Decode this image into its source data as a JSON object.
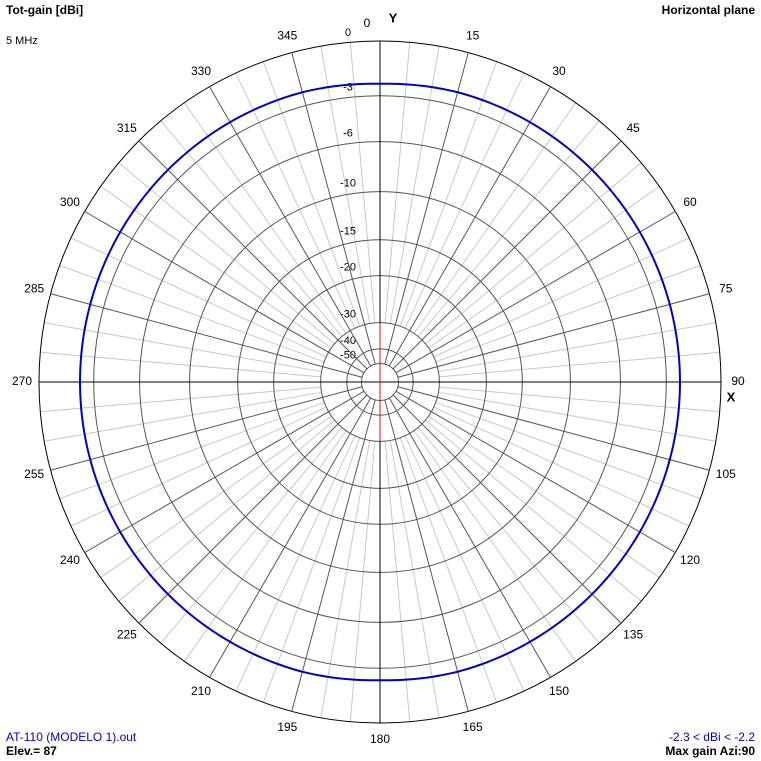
{
  "chart_data": {
    "type": "polar",
    "title": "Tot-gain [dBi]",
    "subtitle": "5 MHz",
    "plane": "Horizontal plane",
    "y_axis_label": "Y",
    "x_axis_label": "X",
    "file_name": "AT-110 (MODELO 1).out",
    "elevation": "Elev.= 87",
    "gain_range": "-2.3 < dBi < -2.2",
    "max_gain": "Max gain Azi:90",
    "rlim": [
      -50,
      0
    ],
    "rticks": [
      0,
      -3,
      -6,
      -10,
      -15,
      -20,
      -30,
      -40,
      -50
    ],
    "angle_ticks": [
      0,
      15,
      30,
      45,
      60,
      75,
      90,
      105,
      120,
      135,
      150,
      165,
      180,
      195,
      210,
      225,
      240,
      255,
      270,
      285,
      300,
      315,
      330,
      345
    ],
    "grid": true,
    "series": [
      {
        "name": "Tot-gain",
        "color": "#0000c0",
        "x": [
          0,
          15,
          30,
          45,
          60,
          75,
          90,
          105,
          120,
          135,
          150,
          165,
          180,
          195,
          210,
          225,
          240,
          255,
          270,
          285,
          300,
          315,
          330,
          345
        ],
        "values": [
          -2.3,
          -2.2,
          -2.2,
          -2.2,
          -2.2,
          -2.2,
          -2.2,
          -2.2,
          -2.2,
          -2.2,
          -2.2,
          -2.2,
          -2.3,
          -2.2,
          -2.2,
          -2.2,
          -2.2,
          -2.2,
          -2.2,
          -2.2,
          -2.2,
          -2.2,
          -2.2,
          -2.2
        ]
      }
    ]
  }
}
